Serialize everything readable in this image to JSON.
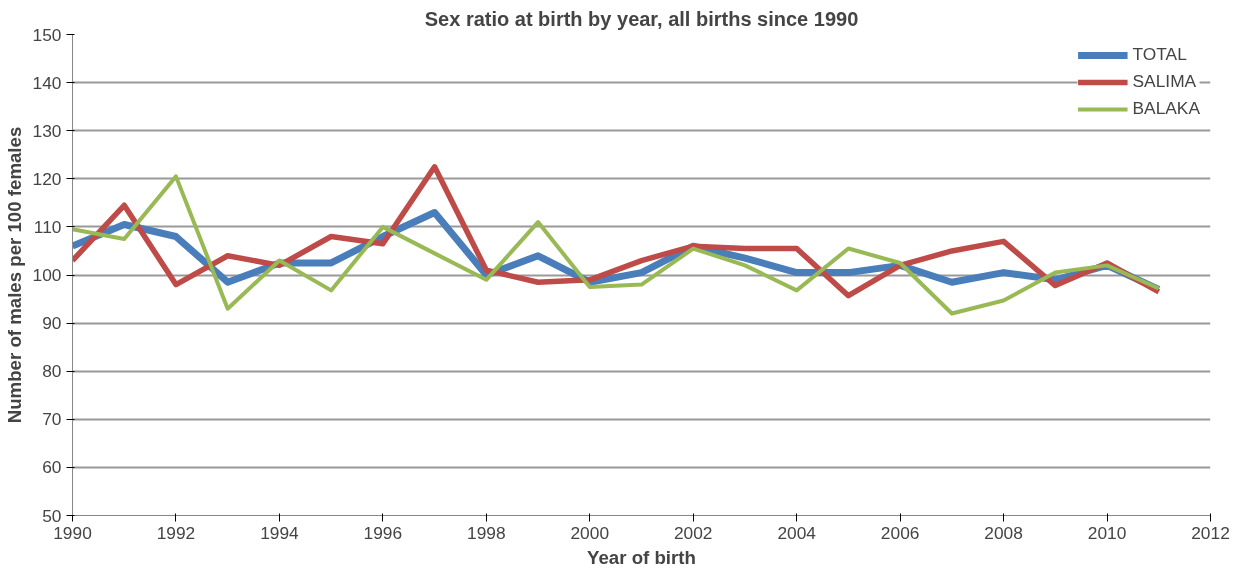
{
  "chart_data": {
    "type": "line",
    "title": "Sex ratio at birth by year, all births since 1990",
    "xlabel": "Year of birth",
    "ylabel": "Number of males per 100 females",
    "x": [
      1990,
      1991,
      1992,
      1993,
      1994,
      1995,
      1996,
      1997,
      1998,
      1999,
      2000,
      2001,
      2002,
      2003,
      2004,
      2005,
      2006,
      2007,
      2008,
      2009,
      2010,
      2011
    ],
    "series": [
      {
        "name": "TOTAL",
        "color": "#4a7ebb",
        "values": [
          106,
          110.5,
          108,
          98.5,
          102.5,
          102.5,
          108,
          113,
          100,
          104,
          98.5,
          100.5,
          106,
          103.5,
          100.5,
          100.5,
          102,
          98.5,
          100.5,
          99,
          102,
          97
        ]
      },
      {
        "name": "SALIMA",
        "color": "#be4b48",
        "values": [
          103,
          114.5,
          98,
          104,
          102,
          108,
          106.5,
          122.5,
          101,
          98.5,
          99,
          103,
          106,
          105.5,
          105.5,
          95.7,
          102,
          105,
          107,
          97.8,
          102.5,
          96.5
        ]
      },
      {
        "name": "BALAKA",
        "color": "#98b954",
        "values": [
          109.5,
          107.5,
          120.5,
          93,
          103,
          96.8,
          110,
          104.5,
          99,
          111,
          97.5,
          98,
          105.5,
          102,
          96.8,
          105.5,
          102.5,
          92,
          94.7,
          100.5,
          102,
          97.2
        ]
      }
    ],
    "xlim": [
      1990,
      2012
    ],
    "xticks": [
      1990,
      1992,
      1994,
      1996,
      1998,
      2000,
      2002,
      2004,
      2006,
      2008,
      2010,
      2012
    ],
    "ylim": [
      50,
      150
    ],
    "yticks": [
      50,
      60,
      70,
      80,
      90,
      100,
      110,
      120,
      130,
      140,
      150
    ],
    "grid": "y",
    "legend": "top right",
    "marker": "none",
    "line_style": "solid"
  }
}
